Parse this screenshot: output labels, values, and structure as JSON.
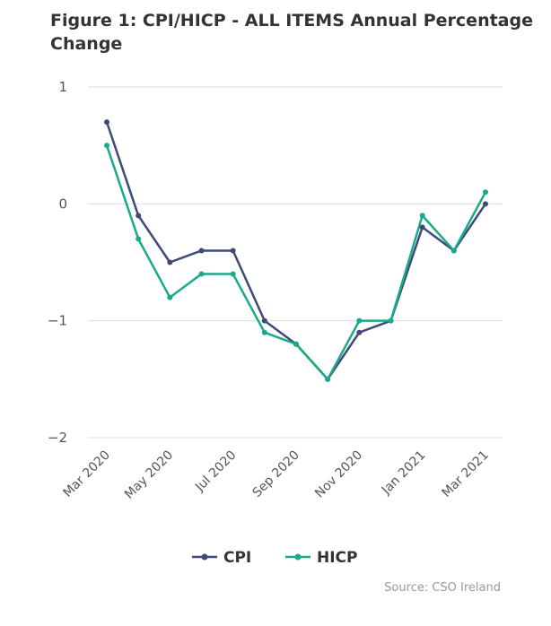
{
  "chart_data": {
    "type": "line",
    "title": "Figure 1: CPI/HICP - ALL ITEMS Annual Percentage Change",
    "x": [
      "Mar 2020",
      "Apr 2020",
      "May 2020",
      "Jun 2020",
      "Jul 2020",
      "Aug 2020",
      "Sep 2020",
      "Oct 2020",
      "Nov 2020",
      "Dec 2020",
      "Jan 2021",
      "Feb 2021",
      "Mar 2021"
    ],
    "x_tick_labels": [
      "Mar 2020",
      "May 2020",
      "Jul 2020",
      "Sep 2020",
      "Nov 2020",
      "Jan 2021",
      "Mar 2021"
    ],
    "y_ticks": [
      1,
      0,
      -1,
      -2
    ],
    "ylim": [
      -2,
      1
    ],
    "grid": true,
    "legend_position": "bottom-center",
    "series": [
      {
        "name": "CPI",
        "color": "#3e4a7a",
        "values": [
          0.7,
          -0.1,
          -0.5,
          -0.4,
          -0.4,
          -1.0,
          -1.2,
          -1.5,
          -1.1,
          -1.0,
          -0.2,
          -0.4,
          0.0
        ]
      },
      {
        "name": "HICP",
        "color": "#1aaa8a",
        "values": [
          0.5,
          -0.3,
          -0.8,
          -0.6,
          -0.6,
          -1.1,
          -1.2,
          -1.5,
          -1.0,
          -1.0,
          -0.1,
          -0.4,
          0.1
        ]
      }
    ]
  },
  "source": "Source: CSO Ireland",
  "colors": {
    "grid": "#dddddd",
    "axis_text": "#555555",
    "title": "#333333"
  }
}
